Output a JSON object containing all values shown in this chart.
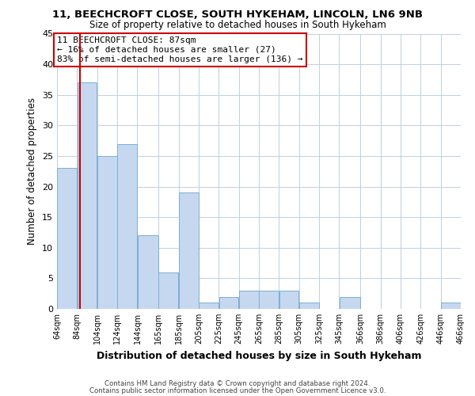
{
  "title1": "11, BEECHCROFT CLOSE, SOUTH HYKEHAM, LINCOLN, LN6 9NB",
  "title2": "Size of property relative to detached houses in South Hykeham",
  "xlabel": "Distribution of detached houses by size in South Hykeham",
  "ylabel": "Number of detached properties",
  "bar_left_edges": [
    64,
    84,
    104,
    124,
    144,
    165,
    185,
    205,
    225,
    245,
    265,
    285,
    305,
    325,
    345,
    366,
    386,
    406,
    426,
    446
  ],
  "bar_widths": [
    20,
    20,
    20,
    20,
    21,
    20,
    20,
    20,
    20,
    20,
    20,
    20,
    20,
    20,
    21,
    20,
    20,
    20,
    20,
    20
  ],
  "bar_heights": [
    23,
    37,
    25,
    27,
    12,
    6,
    19,
    1,
    2,
    3,
    3,
    3,
    1,
    0,
    2,
    0,
    0,
    0,
    0,
    1
  ],
  "bar_color": "#c5d8f0",
  "bar_edgecolor": "#7bafd4",
  "xtick_labels": [
    "64sqm",
    "84sqm",
    "104sqm",
    "124sqm",
    "144sqm",
    "165sqm",
    "185sqm",
    "205sqm",
    "225sqm",
    "245sqm",
    "265sqm",
    "285sqm",
    "305sqm",
    "325sqm",
    "345sqm",
    "366sqm",
    "386sqm",
    "406sqm",
    "426sqm",
    "446sqm",
    "466sqm"
  ],
  "ylim": [
    0,
    45
  ],
  "yticks": [
    0,
    5,
    10,
    15,
    20,
    25,
    30,
    35,
    40,
    45
  ],
  "vline_x": 87,
  "vline_color": "#cc0000",
  "annotation_title": "11 BEECHCROFT CLOSE: 87sqm",
  "annotation_line1": "← 16% of detached houses are smaller (27)",
  "annotation_line2": "83% of semi-detached houses are larger (136) →",
  "footer1": "Contains HM Land Registry data © Crown copyright and database right 2024.",
  "footer2": "Contains public sector information licensed under the Open Government Licence v3.0.",
  "background_color": "#ffffff",
  "grid_color": "#c0cfe0"
}
